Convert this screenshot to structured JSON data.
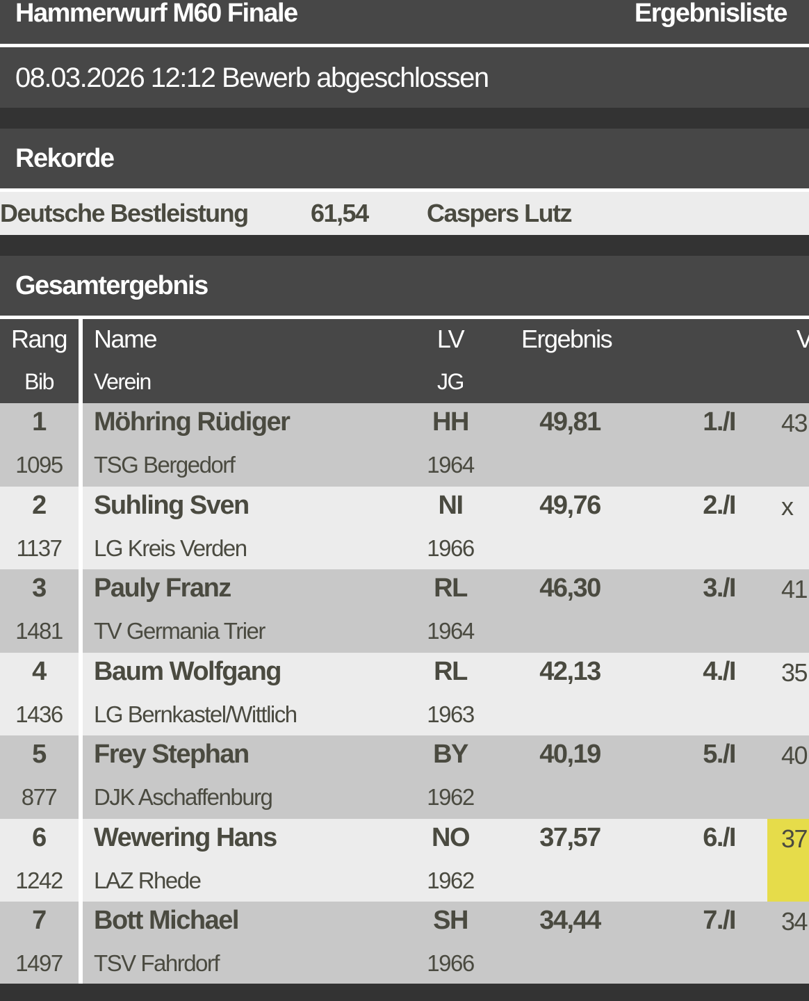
{
  "header": {
    "title": "Hammerwurf M60 Finale",
    "view": "Ergebnisliste"
  },
  "status": "08.03.2026 12:12 Bewerb abgeschlossen",
  "records": {
    "title": "Rekorde",
    "items": [
      {
        "label": "Deutsche Bestleistung",
        "value": "61,54",
        "holder": "Caspers Lutz"
      }
    ]
  },
  "results": {
    "title": "Gesamtergebnis",
    "columns": {
      "rang": "Rang",
      "bib": "Bib",
      "name": "Name",
      "verein": "Verein",
      "lv": "LV",
      "jg": "JG",
      "ergebnis": "Ergebnis",
      "next": "V"
    },
    "highlight_color": "#e6dc4a",
    "rows": [
      {
        "rang": "1",
        "bib": "1095",
        "name": "Möhring Rüdiger",
        "verein": "TSG Bergedorf",
        "lv": "HH",
        "jg": "1964",
        "ergebnis": "49,81",
        "platz": "1./I",
        "v": "43"
      },
      {
        "rang": "2",
        "bib": "1137",
        "name": "Suhling Sven",
        "verein": "LG Kreis Verden",
        "lv": "NI",
        "jg": "1966",
        "ergebnis": "49,76",
        "platz": "2./I",
        "v": "x"
      },
      {
        "rang": "3",
        "bib": "1481",
        "name": "Pauly Franz",
        "verein": "TV Germania Trier",
        "lv": "RL",
        "jg": "1964",
        "ergebnis": "46,30",
        "platz": "3./I",
        "v": "41"
      },
      {
        "rang": "4",
        "bib": "1436",
        "name": "Baum Wolfgang",
        "verein": "LG Bernkastel/Wittlich",
        "lv": "RL",
        "jg": "1963",
        "ergebnis": "42,13",
        "platz": "4./I",
        "v": "35"
      },
      {
        "rang": "5",
        "bib": "877",
        "name": "Frey Stephan",
        "verein": "DJK Aschaffenburg",
        "lv": "BY",
        "jg": "1962",
        "ergebnis": "40,19",
        "platz": "5./I",
        "v": "40"
      },
      {
        "rang": "6",
        "bib": "1242",
        "name": "Wewering Hans",
        "verein": "LAZ Rhede",
        "lv": "NO",
        "jg": "1962",
        "ergebnis": "37,57",
        "platz": "6./I",
        "v": "37",
        "highlight": true
      },
      {
        "rang": "7",
        "bib": "1497",
        "name": "Bott Michael",
        "verein": "TSV Fahrdorf",
        "lv": "SH",
        "jg": "1966",
        "ergebnis": "34,44",
        "platz": "7./I",
        "v": "34"
      }
    ]
  }
}
